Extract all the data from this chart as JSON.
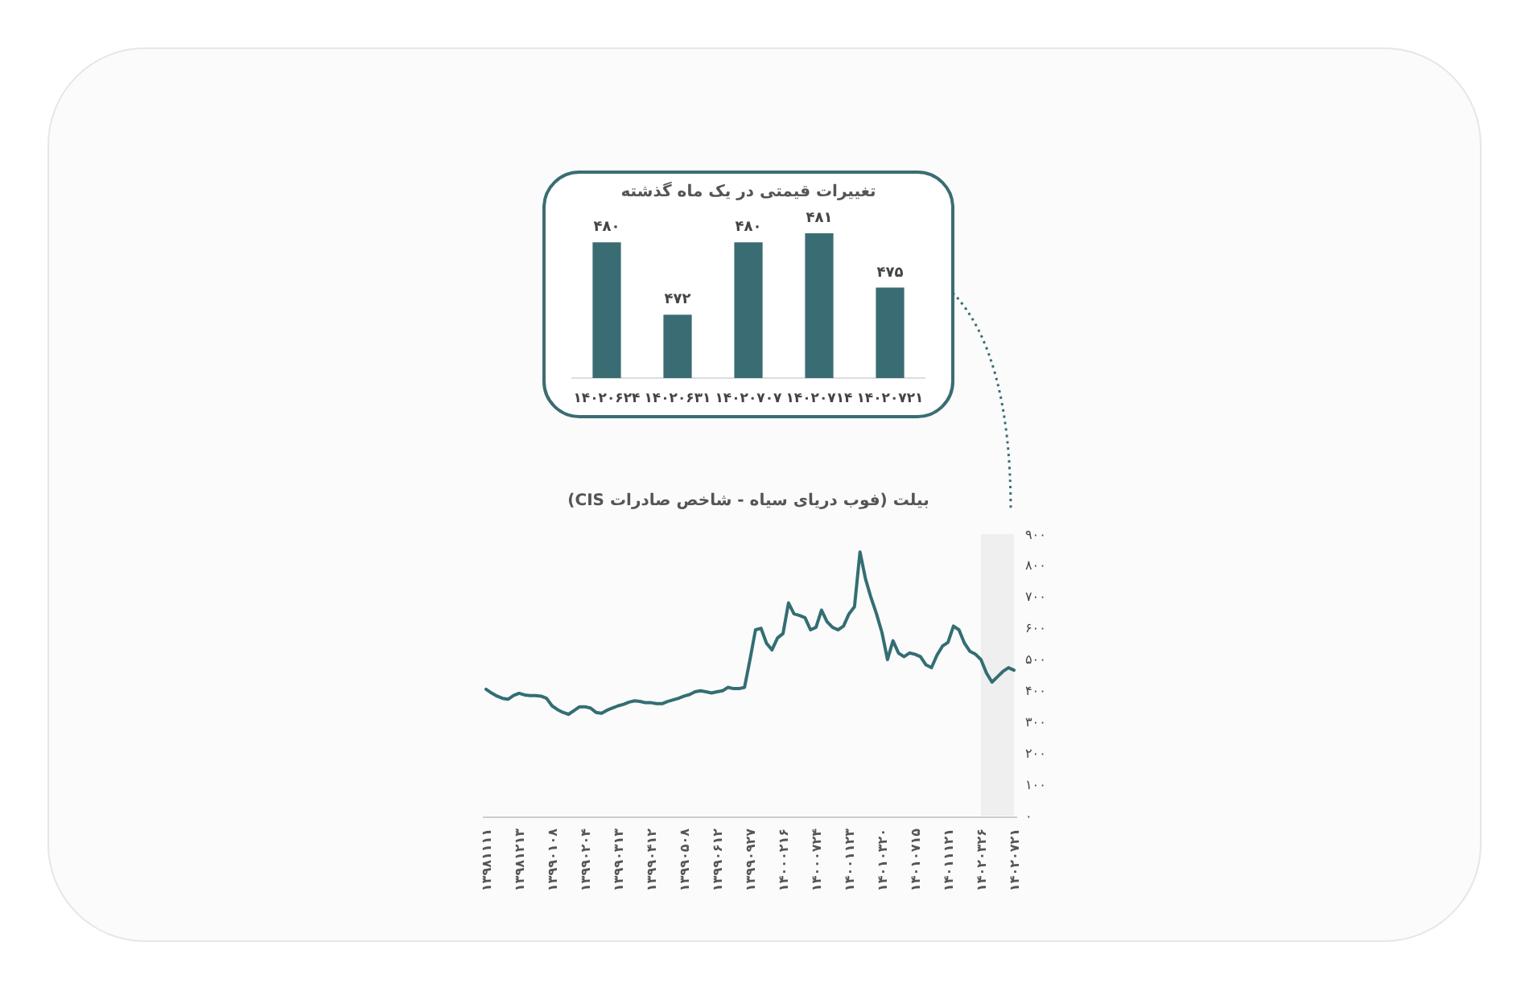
{
  "chart_data": [
    {
      "type": "bar",
      "title": "تغییرات قیمتی در یک ماه گذشته",
      "categories": [
        "۱۴۰۲۰۶۲۴",
        "۱۴۰۲۰۶۳۱",
        "۱۴۰۲۰۷۰۷",
        "۱۴۰۲۰۷۱۴",
        "۱۴۰۲۰۷۲۱"
      ],
      "values": [
        480,
        472,
        480,
        481,
        475
      ],
      "value_labels": [
        "۴۸۰",
        "۴۷۲",
        "۴۸۰",
        "۴۸۱",
        "۴۷۵"
      ],
      "color": "#3a6d73",
      "ylim": [
        465,
        481
      ]
    },
    {
      "type": "line",
      "title": "بیلت (فوب دریای سیاه - شاخص صادرات CIS)",
      "categories": [
        "۱۳۹۸۱۱۱۱",
        null,
        null,
        null,
        null,
        null,
        "۱۳۹۸۱۲۱۳",
        null,
        null,
        null,
        null,
        null,
        "۱۳۹۹۰۱۰۸",
        null,
        null,
        null,
        null,
        null,
        "۱۳۹۹۰۲۰۴",
        null,
        null,
        null,
        null,
        null,
        "۱۳۹۹۰۳۱۳",
        null,
        null,
        null,
        null,
        null,
        "۱۳۹۹۰۴۱۲",
        null,
        null,
        null,
        null,
        null,
        "۱۳۹۹۰۵۰۸",
        null,
        null,
        null,
        null,
        null,
        "۱۳۹۹۰۶۱۲",
        null,
        null,
        null,
        null,
        null,
        "۱۳۹۹۰۹۲۷",
        null,
        null,
        null,
        null,
        null,
        "۱۴۰۰۰۲۱۶",
        null,
        null,
        null,
        null,
        null,
        "۱۴۰۰۰۷۲۴",
        null,
        null,
        null,
        null,
        null,
        "۱۴۰۰۱۱۲۳",
        null,
        null,
        null,
        null,
        null,
        "۱۴۰۱۰۳۲۰",
        null,
        null,
        null,
        null,
        null,
        "۱۴۰۱۰۷۱۵",
        null,
        null,
        null,
        null,
        null,
        "۱۴۰۱۱۱۲۱",
        null,
        null,
        null,
        null,
        null,
        "۱۴۰۲۰۳۲۶",
        null,
        null,
        null,
        null,
        null,
        "۱۴۰۲۰۷۲۱"
      ],
      "values": [
        404,
        392,
        382,
        375,
        372,
        384,
        391,
        386,
        384,
        384,
        382,
        375,
        351,
        339,
        330,
        324,
        336,
        348,
        348,
        344,
        330,
        327,
        337,
        344,
        351,
        356,
        363,
        367,
        365,
        361,
        361,
        358,
        358,
        365,
        370,
        375,
        382,
        387,
        396,
        399,
        396,
        392,
        396,
        399,
        410,
        406,
        406,
        410,
        499,
        594,
        599,
        551,
        530,
        568,
        582,
        680,
        645,
        640,
        633,
        594,
        602,
        657,
        620,
        602,
        594,
        606,
        645,
        668,
        843,
        757,
        697,
        645,
        585,
        499,
        559,
        520,
        508,
        520,
        516,
        508,
        482,
        473,
        513,
        542,
        554,
        606,
        594,
        551,
        525,
        516,
        499,
        456,
        427,
        444,
        461,
        473,
        465
      ],
      "color": "#336e73",
      "ylim": [
        0,
        900
      ],
      "yticks": [
        {
          "value": 0,
          "label": "۰"
        },
        {
          "value": 100,
          "label": "۱۰۰"
        },
        {
          "value": 200,
          "label": "۲۰۰"
        },
        {
          "value": 300,
          "label": "۳۰۰"
        },
        {
          "value": 400,
          "label": "۴۰۰"
        },
        {
          "value": 500,
          "label": "۵۰۰"
        },
        {
          "value": 600,
          "label": "۶۰۰"
        },
        {
          "value": 700,
          "label": "۷۰۰"
        },
        {
          "value": 800,
          "label": "۸۰۰"
        },
        {
          "value": 900,
          "label": "۹۰۰"
        }
      ],
      "bands": [
        {
          "axis": "x",
          "from": "۱۴۰۲۰۳۲۶",
          "to": "۱۴۰۲۰۷۲۱",
          "color": "#efefef"
        }
      ]
    }
  ]
}
